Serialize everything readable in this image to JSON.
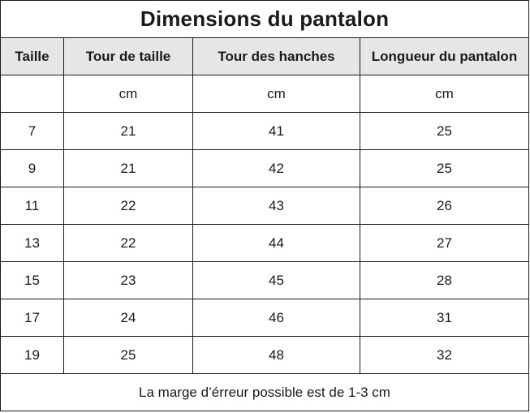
{
  "table": {
    "title": "Dimensions du pantalon",
    "headers": [
      "Taille",
      "Tour de taille",
      "Tour des hanches",
      "Longueur du pantalon"
    ],
    "units": [
      "",
      "cm",
      "cm",
      "cm"
    ],
    "rows": [
      [
        "7",
        "21",
        "41",
        "25"
      ],
      [
        "9",
        "21",
        "42",
        "25"
      ],
      [
        "11",
        "22",
        "43",
        "26"
      ],
      [
        "13",
        "22",
        "44",
        "27"
      ],
      [
        "15",
        "23",
        "45",
        "28"
      ],
      [
        "17",
        "24",
        "46",
        "31"
      ],
      [
        "19",
        "25",
        "48",
        "32"
      ]
    ],
    "note": "La marge d’érreur possible est de 1-3 cm"
  }
}
